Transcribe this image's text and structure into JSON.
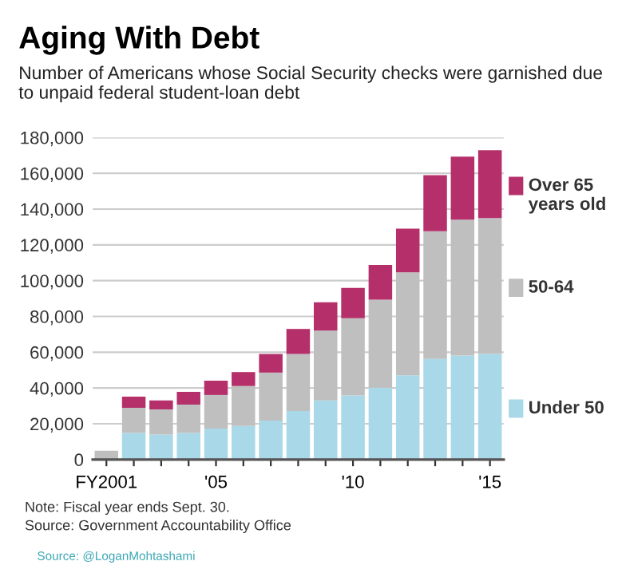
{
  "chart_data": {
    "type": "bar",
    "title": "Aging With Debt",
    "subtitle": "Number of Americans whose Social Security checks were garnished due to unpaid federal student-loan debt",
    "categories": [
      "FY2001",
      null,
      null,
      null,
      "'05",
      null,
      null,
      null,
      null,
      "'10",
      null,
      null,
      null,
      null,
      "'15"
    ],
    "stacked": true,
    "series": [
      {
        "name": "Under 50",
        "color": "#a9d8e8",
        "values": [
          null,
          14900,
          14000,
          14900,
          17300,
          18800,
          21800,
          27100,
          33100,
          35800,
          40200,
          47100,
          56300,
          58100,
          59000
        ]
      },
      {
        "name": "50-64",
        "color": "#bfbfbf",
        "values": [
          5000,
          14000,
          14000,
          15800,
          18800,
          22300,
          26800,
          31900,
          39000,
          43200,
          49200,
          57500,
          71300,
          76000,
          76000
        ]
      },
      {
        "name": "Over 65 years old",
        "color": "#b5306b",
        "values": [
          null,
          6300,
          5100,
          7100,
          8000,
          7800,
          10400,
          14000,
          15800,
          17000,
          19400,
          24500,
          31300,
          35200,
          37900
        ]
      }
    ],
    "ylim": [
      0,
      180000
    ],
    "yticks": [
      {
        "value": 0,
        "label": "0"
      },
      {
        "value": 20000,
        "label": "20,000"
      },
      {
        "value": 40000,
        "label": "40,000"
      },
      {
        "value": 60000,
        "label": "60,000"
      },
      {
        "value": 80000,
        "label": "80,000"
      },
      {
        "value": 100000,
        "label": "100,000"
      },
      {
        "value": 120000,
        "label": "120,000"
      },
      {
        "value": 140000,
        "label": "140,000"
      },
      {
        "value": 160000,
        "label": "160,000"
      },
      {
        "value": 180000,
        "label": "180,000"
      }
    ],
    "grid": "y",
    "legend": "right",
    "annotations": [
      "Note: Fiscal year ends Sept. 30.",
      "Source: Government Accountability Office",
      "Source: @LoganMohtashami"
    ]
  }
}
